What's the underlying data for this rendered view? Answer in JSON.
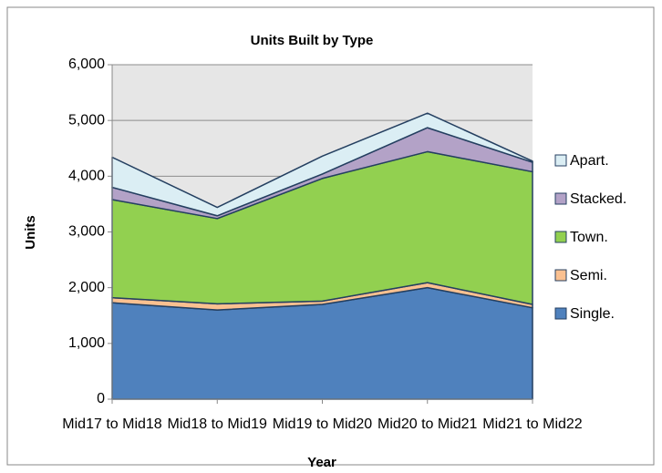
{
  "chart_data": {
    "type": "stacked_area",
    "title": "Units Built by Type",
    "x_label": "Year",
    "y_label": "Units",
    "categories": [
      "Mid17 to Mid18",
      "Mid18 to Mid19",
      "Mid19 to Mid20",
      "Mid20 to Mid21",
      "Mid21 to Mid22"
    ],
    "series": [
      {
        "name": "Single.",
        "color": "#4f81bd",
        "values": [
          1730,
          1600,
          1700,
          2000,
          1640
        ]
      },
      {
        "name": "Semi.",
        "color": "#fac090",
        "values": [
          90,
          110,
          60,
          90,
          60
        ]
      },
      {
        "name": "Town.",
        "color": "#92d050",
        "values": [
          1760,
          1530,
          2200,
          2350,
          2380
        ]
      },
      {
        "name": "Stacked.",
        "color": "#b3a2c7",
        "values": [
          220,
          50,
          80,
          430,
          170
        ]
      },
      {
        "name": "Apart.",
        "color": "#dbeef4",
        "values": [
          540,
          150,
          320,
          260,
          20
        ]
      }
    ],
    "ylim": [
      0,
      6000
    ],
    "yticks": [
      0,
      {
        "value": 1000,
        "label": "1,000"
      },
      {
        "value": 2000,
        "label": "2,000"
      },
      {
        "value": 3000,
        "label": "3,000"
      },
      {
        "value": 4000,
        "label": "4,000"
      },
      {
        "value": 5000,
        "label": "5,000"
      },
      {
        "value": 6000,
        "label": "6,000"
      }
    ],
    "grid": true,
    "legend": "right"
  }
}
